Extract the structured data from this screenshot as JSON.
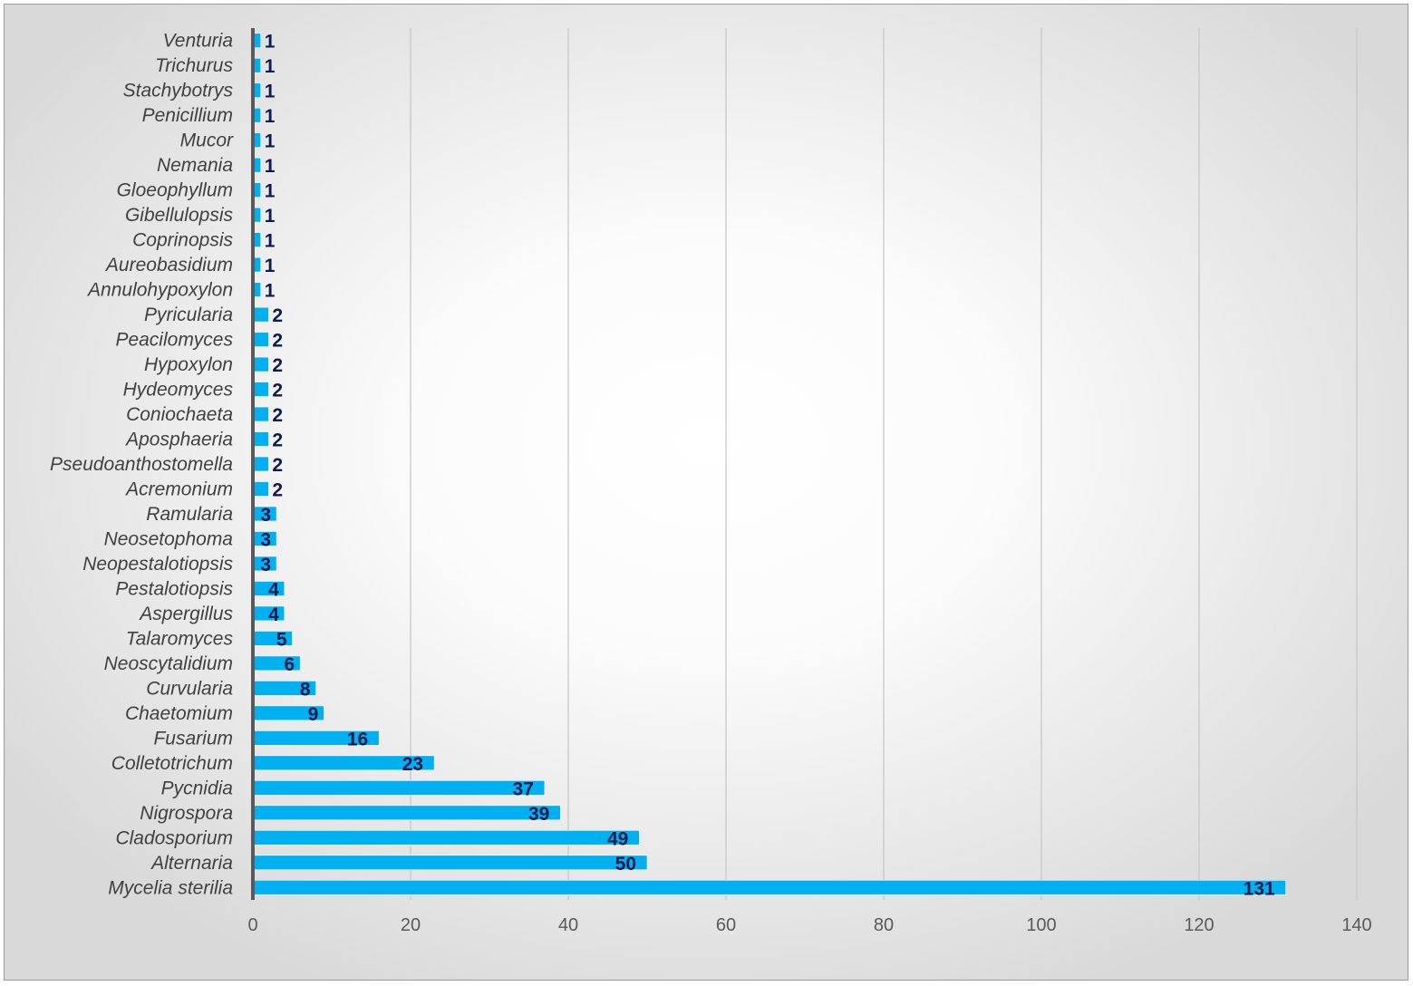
{
  "chart_data": {
    "type": "bar",
    "orientation": "horizontal",
    "categories": [
      "Venturia",
      "Trichurus",
      "Stachybotrys",
      "Penicillium",
      "Mucor",
      "Nemania",
      "Gloeophyllum",
      "Gibellulopsis",
      "Coprinopsis",
      "Aureobasidium",
      "Annulohypoxylon",
      "Pyricularia",
      "Peacilomyces",
      "Hypoxylon",
      "Hydeomyces",
      "Coniochaeta",
      "Aposphaeria",
      "Pseudoanthostomella",
      "Acremonium",
      "Ramularia",
      "Neosetophoma",
      "Neopestalotiopsis",
      "Pestalotiopsis",
      "Aspergillus",
      "Talaromyces",
      "Neoscytalidium",
      "Curvularia",
      "Chaetomium",
      "Fusarium",
      "Colletotrichum",
      "Pycnidia",
      "Nigrospora",
      "Cladosporium",
      "Alternaria",
      "Mycelia sterilia"
    ],
    "values": [
      1,
      1,
      1,
      1,
      1,
      1,
      1,
      1,
      1,
      1,
      1,
      2,
      2,
      2,
      2,
      2,
      2,
      2,
      2,
      3,
      3,
      3,
      4,
      4,
      5,
      6,
      8,
      9,
      16,
      23,
      37,
      39,
      49,
      50,
      131
    ],
    "xlim": [
      0,
      140
    ],
    "xticks": [
      0,
      20,
      40,
      60,
      80,
      100,
      120,
      140
    ],
    "grid": "vertical",
    "bar_color": "#00b0f0",
    "label_color": "#0d1b4c",
    "title": "",
    "xlabel": "",
    "ylabel": ""
  }
}
